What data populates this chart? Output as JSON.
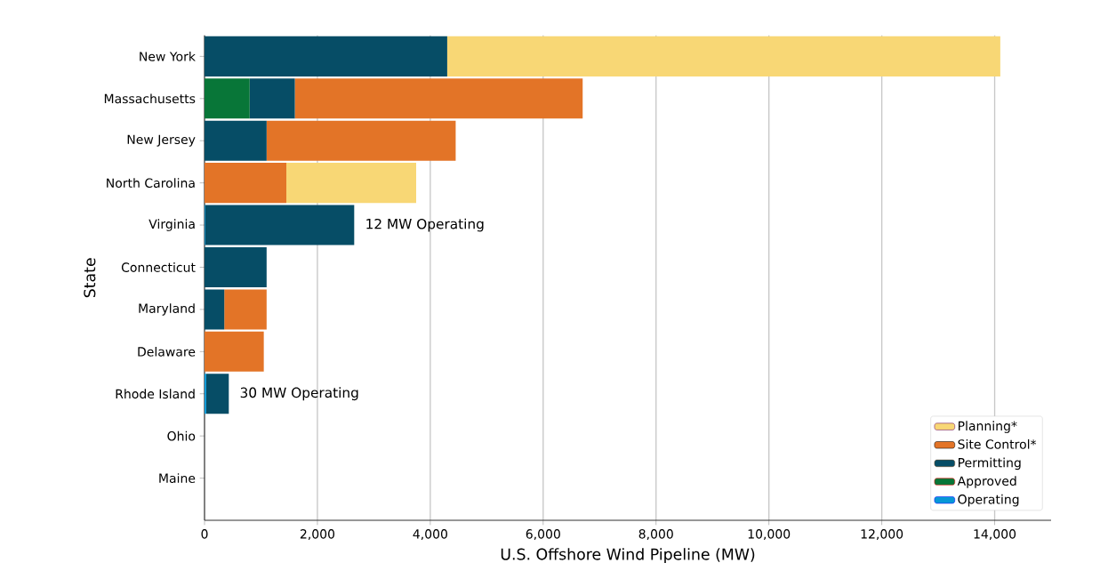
{
  "chart_data": {
    "type": "bar",
    "orientation": "horizontal",
    "stacked": true,
    "xlabel": "U.S. Offshore Wind Pipeline (MW)",
    "ylabel": "State",
    "categories": [
      "New York",
      "Massachusetts",
      "New Jersey",
      "North Carolina",
      "Virginia",
      "Connecticut",
      "Maryland",
      "Delaware",
      "Rhode Island",
      "Ohio",
      "Maine"
    ],
    "series": [
      {
        "name": "Operating",
        "color": "#0797d6",
        "values": [
          0,
          0,
          0,
          0,
          12,
          0,
          0,
          0,
          30,
          0,
          0
        ]
      },
      {
        "name": "Approved",
        "color": "#087638",
        "values": [
          0,
          800,
          0,
          0,
          0,
          0,
          0,
          0,
          0,
          0,
          0
        ]
      },
      {
        "name": "Permitting",
        "color": "#064d66",
        "values": [
          4300,
          800,
          1100,
          0,
          2640,
          1100,
          350,
          0,
          400,
          0,
          0
        ]
      },
      {
        "name": "Site Control*",
        "color": "#e37427",
        "values": [
          0,
          5100,
          3350,
          1450,
          0,
          0,
          750,
          1050,
          0,
          0,
          0
        ]
      },
      {
        "name": "Planning*",
        "color": "#f8d775",
        "values": [
          9800,
          0,
          0,
          2300,
          0,
          0,
          0,
          0,
          0,
          0,
          0
        ]
      }
    ],
    "xlim": [
      0,
      15000
    ],
    "xticks": [
      {
        "value": 0,
        "label": "0"
      },
      {
        "value": 2000,
        "label": "2,000"
      },
      {
        "value": 4000,
        "label": "4,000"
      },
      {
        "value": 6000,
        "label": "6,000"
      },
      {
        "value": 8000,
        "label": "8,000"
      },
      {
        "value": 10000,
        "label": "10,000"
      },
      {
        "value": 12000,
        "label": "12,000"
      },
      {
        "value": 14000,
        "label": "14,000"
      }
    ],
    "grid": "x",
    "legend": "bottom right",
    "annotations": [
      {
        "text": "12 MW Operating",
        "x": 2652,
        "y": "Virginia"
      },
      {
        "text": "30 MW Operating",
        "x": 430,
        "y": "Rhode Island"
      }
    ]
  }
}
